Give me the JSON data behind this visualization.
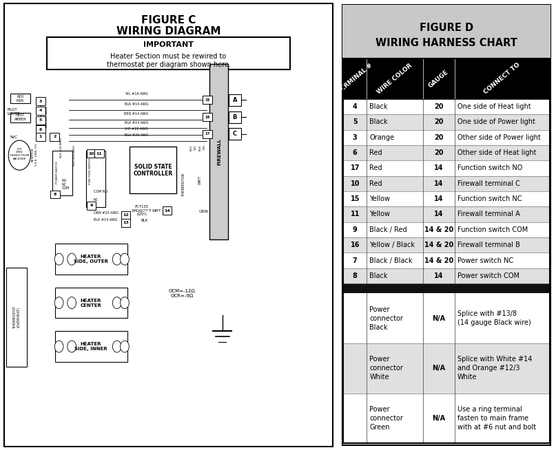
{
  "fig_c_title_line1": "FIGURE C",
  "fig_c_title_line2": "WIRING DIAGRAM",
  "fig_d_title_line1": "FIGURE D",
  "fig_d_title_line2": "WIRING HARNESS CHART",
  "important_title": "IMPORTANT",
  "important_body": "Heater Section must be rewired to\nthermostat per diagram shown here.",
  "header_cols": [
    "TERMINAL #",
    "WIRE COLOR",
    "GAUGE",
    "CONNECT TO"
  ],
  "table_rows": [
    [
      "4",
      "Black",
      "20",
      "One side of Heat light"
    ],
    [
      "5",
      "Black",
      "20",
      "One side of Power light"
    ],
    [
      "3",
      "Orange",
      "20",
      "Other side of Power light"
    ],
    [
      "6",
      "Red",
      "20",
      "Other side of Heat light"
    ],
    [
      "17",
      "Red",
      "14",
      "Function switch NO"
    ],
    [
      "10",
      "Red",
      "14",
      "Firewall terminal C"
    ],
    [
      "15",
      "Yellow",
      "14",
      "Function switch NC"
    ],
    [
      "11",
      "Yellow",
      "14",
      "Firewall terminal A"
    ],
    [
      "9",
      "Black / Red",
      "14 & 20",
      "Function switch COM"
    ],
    [
      "16",
      "Yellow / Black",
      "14 & 20",
      "Firewall terminal B"
    ],
    [
      "7",
      "Black / Black",
      "14 & 20",
      "Power switch NC"
    ],
    [
      "8",
      "Black",
      "14",
      "Power switch COM"
    ]
  ],
  "power_rows": [
    [
      "",
      "Power\nconnector\nBlack",
      "N/A",
      "Splice with #13/8\n(14 gauge Black wire)"
    ],
    [
      "",
      "Power\nconnector\nWhite",
      "N/A",
      "Splice with White #14\nand Orange #12/3\nWhite"
    ],
    [
      "",
      "Power\nconnector\nGreen",
      "N/A",
      "Use a ring terminal\nfasten to main frame\nwith at #6 nut and bolt"
    ]
  ],
  "bg_color": "#ffffff",
  "header_bg": "#000000",
  "header_fg": "#ffffff",
  "separator_bg": "#111111",
  "row_odd_bg": "#ffffff",
  "row_even_bg": "#e0e0e0",
  "border_color": "#000000",
  "title_bg": "#c8c8c8"
}
